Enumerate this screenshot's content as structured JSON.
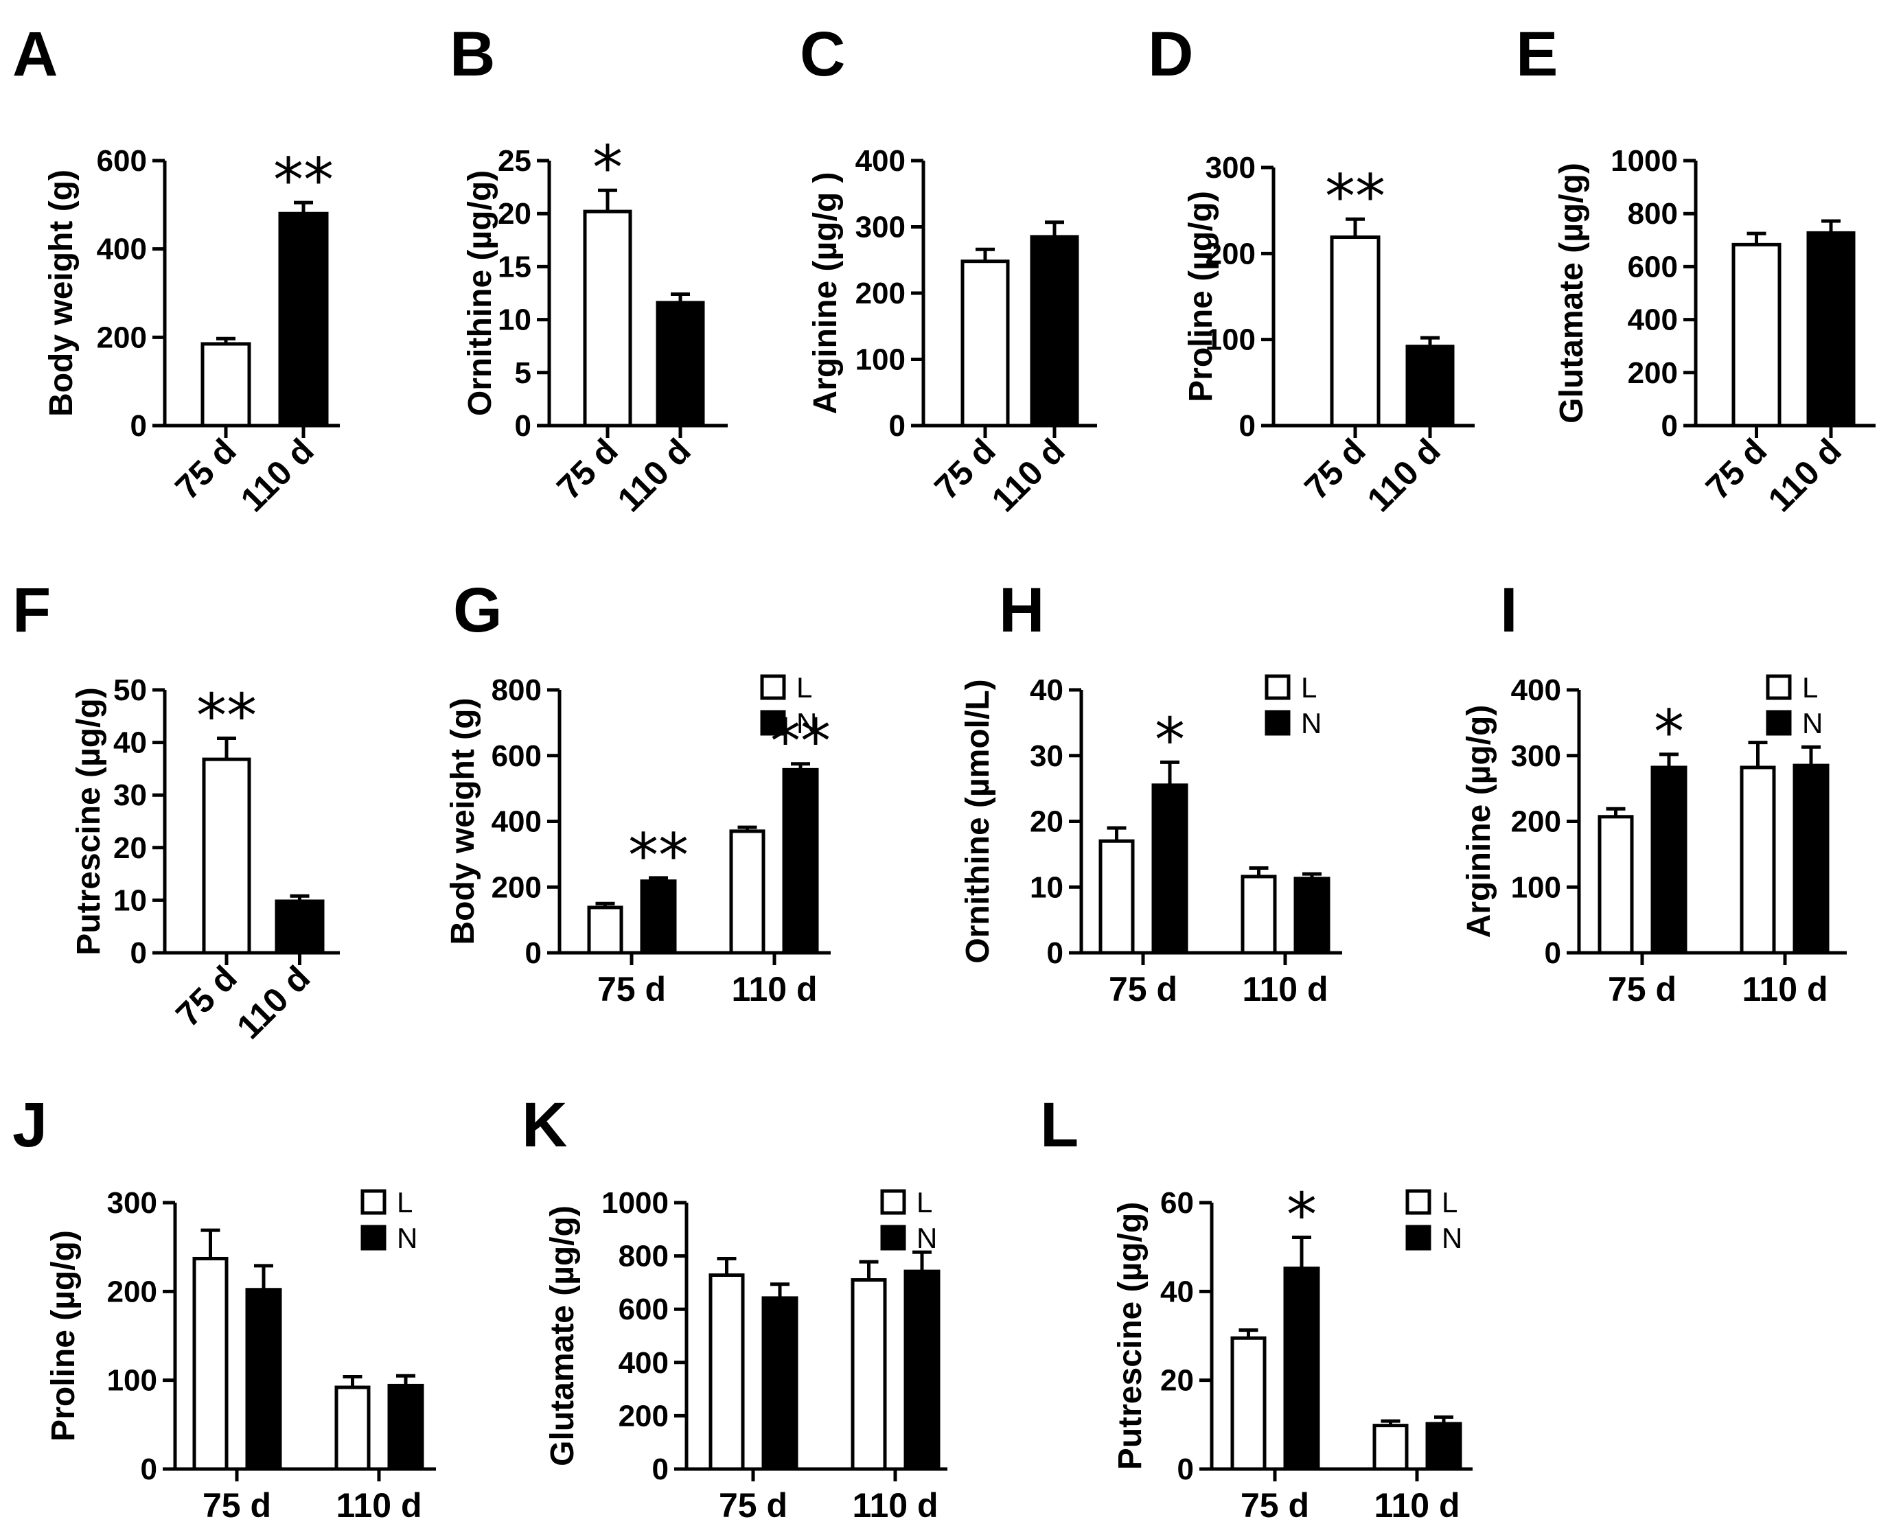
{
  "figure": {
    "description": "Multi-panel bar chart figure"
  },
  "chart_data": [
    {
      "id": "A",
      "panel": "A",
      "type": "bar",
      "ylabel": "Body weight (g)",
      "ylim": [
        0,
        600
      ],
      "yticks": [
        0,
        200,
        400,
        600
      ],
      "categories": [
        "75 d",
        "110 d"
      ],
      "series": [
        {
          "name": "",
          "values": [
            185,
            480
          ],
          "errors": [
            12,
            25
          ]
        }
      ],
      "significance": [
        "",
        "**"
      ],
      "legend": []
    },
    {
      "id": "B",
      "panel": "B",
      "type": "bar",
      "ylabel": "Ornithine (µg/g)",
      "ylim": [
        0,
        25
      ],
      "yticks": [
        0,
        5,
        10,
        15,
        20,
        25
      ],
      "categories": [
        "75 d",
        "110 d"
      ],
      "series": [
        {
          "name": "",
          "values": [
            20.2,
            11.6
          ],
          "errors": [
            2.0,
            0.8
          ]
        }
      ],
      "significance": [
        "*",
        ""
      ],
      "legend": []
    },
    {
      "id": "C",
      "panel": "C",
      "type": "bar",
      "ylabel": "Arginine (µg/g )",
      "ylim": [
        0,
        400
      ],
      "yticks": [
        0,
        100,
        200,
        300,
        400
      ],
      "categories": [
        "75 d",
        "110 d"
      ],
      "series": [
        {
          "name": "",
          "values": [
            248,
            285
          ],
          "errors": [
            18,
            22
          ]
        }
      ],
      "significance": [
        "",
        ""
      ],
      "legend": []
    },
    {
      "id": "D",
      "panel": "D",
      "type": "bar",
      "ylabel": "Proline (µg/g)",
      "ylim": [
        0,
        300
      ],
      "yticks": [
        0,
        100,
        200,
        300
      ],
      "categories": [
        "75 d",
        "110 d"
      ],
      "series": [
        {
          "name": "",
          "values": [
            219,
            92
          ],
          "errors": [
            21,
            10
          ]
        }
      ],
      "significance": [
        "**",
        ""
      ],
      "legend": []
    },
    {
      "id": "E",
      "panel": "E",
      "type": "bar",
      "ylabel": "Glutamate (µg/g)",
      "ylim": [
        0,
        1000
      ],
      "yticks": [
        0,
        200,
        400,
        600,
        800,
        1000
      ],
      "categories": [
        "75 d",
        "110 d"
      ],
      "series": [
        {
          "name": "",
          "values": [
            683,
            727
          ],
          "errors": [
            42,
            45
          ]
        }
      ],
      "significance": [
        "",
        ""
      ],
      "legend": []
    },
    {
      "id": "F",
      "panel": "F",
      "type": "bar",
      "ylabel": "Putrescine (µg/g)",
      "ylim": [
        0,
        50
      ],
      "yticks": [
        0,
        10,
        20,
        30,
        40,
        50
      ],
      "categories": [
        "75 d",
        "110 d"
      ],
      "series": [
        {
          "name": "",
          "values": [
            36.8,
            9.8
          ],
          "errors": [
            4.0,
            1.0
          ]
        }
      ],
      "significance": [
        "**",
        ""
      ],
      "legend": []
    },
    {
      "id": "G",
      "panel": "G",
      "type": "bar",
      "ylabel": "Body weight (g)",
      "ylim": [
        0,
        800
      ],
      "yticks": [
        0,
        200,
        400,
        600,
        800
      ],
      "categories": [
        "75 d",
        "110 d"
      ],
      "series": [
        {
          "name": "L",
          "values": [
            138,
            370
          ],
          "errors": [
            12,
            12
          ]
        },
        {
          "name": "N",
          "values": [
            218,
            557
          ],
          "errors": [
            10,
            18
          ]
        }
      ],
      "significance": [
        [
          "",
          "**"
        ],
        [
          "",
          "**"
        ]
      ],
      "legend": [
        "L",
        "N"
      ]
    },
    {
      "id": "H",
      "panel": "H",
      "type": "bar",
      "ylabel": "Ornithine (µmol/L)",
      "ylim": [
        0,
        40
      ],
      "yticks": [
        0,
        10,
        20,
        30,
        40
      ],
      "categories": [
        "75 d",
        "110 d"
      ],
      "series": [
        {
          "name": "L",
          "values": [
            17,
            11.6
          ],
          "errors": [
            2.0,
            1.3
          ]
        },
        {
          "name": "N",
          "values": [
            25.5,
            11.3
          ],
          "errors": [
            3.5,
            0.7
          ]
        }
      ],
      "significance": [
        [
          "",
          "*"
        ],
        [
          "",
          ""
        ]
      ],
      "legend": [
        "L",
        "N"
      ]
    },
    {
      "id": "I",
      "panel": "I",
      "type": "bar",
      "ylabel": "Arginine (µg/g)",
      "ylim": [
        0,
        400
      ],
      "yticks": [
        0,
        100,
        200,
        300,
        400
      ],
      "categories": [
        "75 d",
        "110 d"
      ],
      "series": [
        {
          "name": "L",
          "values": [
            207,
            282
          ],
          "errors": [
            12,
            38
          ]
        },
        {
          "name": "N",
          "values": [
            282,
            285
          ],
          "errors": [
            20,
            28
          ]
        }
      ],
      "significance": [
        [
          "",
          "*"
        ],
        [
          "",
          ""
        ]
      ],
      "legend": [
        "L",
        "N"
      ]
    },
    {
      "id": "J",
      "panel": "J",
      "type": "bar",
      "ylabel": "Proline (µg/g)",
      "ylim": [
        0,
        300
      ],
      "yticks": [
        0,
        100,
        200,
        300
      ],
      "categories": [
        "75 d",
        "110 d"
      ],
      "series": [
        {
          "name": "L",
          "values": [
            237,
            92
          ],
          "errors": [
            32,
            12
          ]
        },
        {
          "name": "N",
          "values": [
            202,
            94
          ],
          "errors": [
            27,
            11
          ]
        }
      ],
      "significance": [
        [
          "",
          ""
        ],
        [
          "",
          ""
        ]
      ],
      "legend": [
        "L",
        "N"
      ]
    },
    {
      "id": "K",
      "panel": "K",
      "type": "bar",
      "ylabel": "Glutamate (µg/g)",
      "ylim": [
        0,
        1000
      ],
      "yticks": [
        0,
        200,
        400,
        600,
        800,
        1000
      ],
      "categories": [
        "75 d",
        "110 d"
      ],
      "series": [
        {
          "name": "L",
          "values": [
            728,
            710
          ],
          "errors": [
            62,
            68
          ]
        },
        {
          "name": "N",
          "values": [
            642,
            742
          ],
          "errors": [
            52,
            72
          ]
        }
      ],
      "significance": [
        [
          "",
          ""
        ],
        [
          "",
          ""
        ]
      ],
      "legend": [
        "L",
        "N"
      ]
    },
    {
      "id": "L",
      "panel": "L",
      "type": "bar",
      "ylabel": "Putrescine (µg/g)",
      "ylim": [
        0,
        60
      ],
      "yticks": [
        0,
        20,
        40,
        60
      ],
      "categories": [
        "75 d",
        "110 d"
      ],
      "series": [
        {
          "name": "L",
          "values": [
            29.5,
            9.8
          ],
          "errors": [
            1.8,
            1.0
          ]
        },
        {
          "name": "N",
          "values": [
            45.2,
            10.2
          ],
          "errors": [
            7.0,
            1.5
          ]
        }
      ],
      "significance": [
        [
          "",
          "*"
        ],
        [
          "",
          ""
        ]
      ],
      "legend": [
        "L",
        "N"
      ]
    }
  ]
}
